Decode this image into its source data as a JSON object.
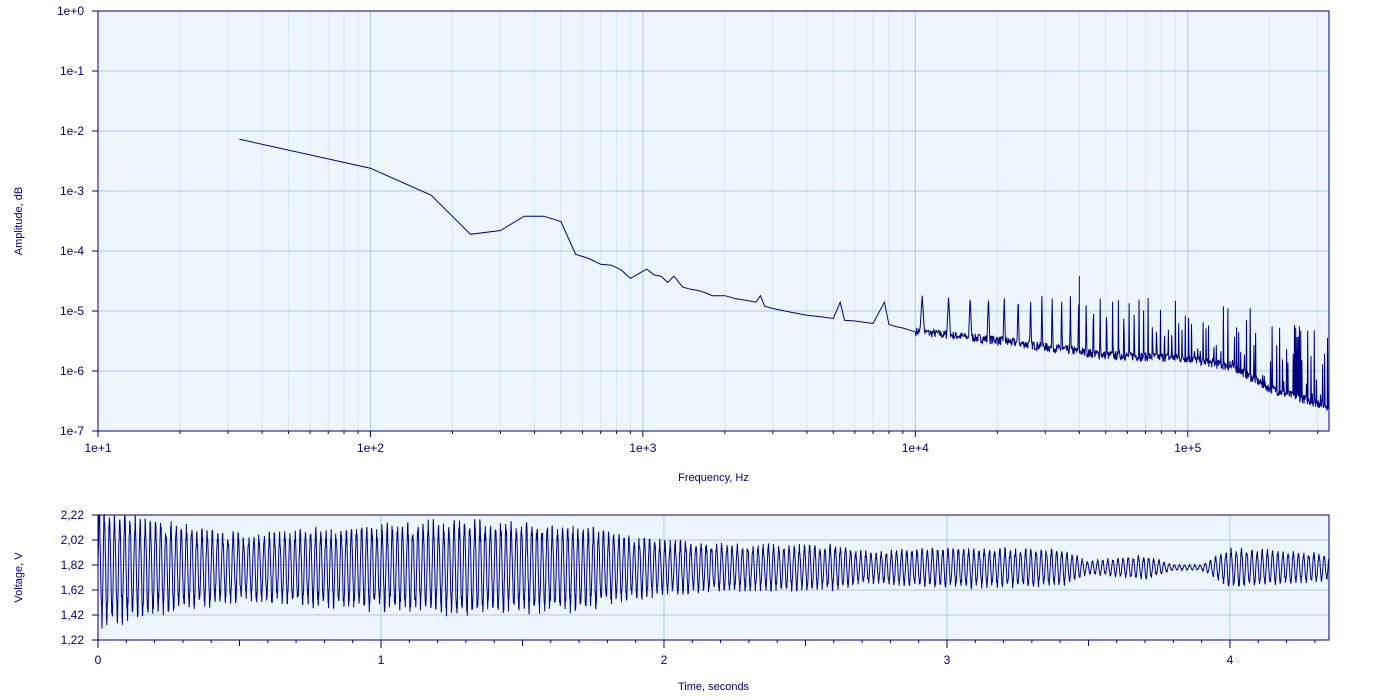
{
  "chart_data": [
    {
      "type": "line",
      "title": "",
      "xlabel": "Frequency, Hz",
      "ylabel": "Amplitude, dB",
      "x_scale": "log",
      "y_scale": "log",
      "xlim": [
        10,
        330000
      ],
      "ylim": [
        1e-07,
        1
      ],
      "grid": true,
      "x_ticks": [
        "1e+1",
        "1e+2",
        "1e+3",
        "1e+4",
        "1e+5"
      ],
      "y_ticks": [
        "1e+0",
        "1e-1",
        "1e-2",
        "1e-3",
        "1e-4",
        "1e-5",
        "1e-6",
        "1e-7"
      ],
      "colors": {
        "line": "#000080",
        "plot_bg": "#eef6fd",
        "grid": "#b4c8dc",
        "axis": "#000080"
      },
      "series": [
        {
          "x": [
            33,
            100,
            167,
            233,
            300,
            367,
            433,
            500,
            567,
            633,
            700,
            767,
            833,
            900,
            967,
            1033,
            1100,
            1167,
            1233,
            1300,
            1400,
            1500,
            1600,
            1700,
            1800,
            2000,
            2200,
            2400,
            2600,
            2700,
            2800,
            3000,
            3500,
            4000,
            4500,
            5000,
            5300,
            5500,
            6000,
            7000,
            7700,
            8000,
            8500,
            9000,
            10000
          ],
          "y": [
            0.0073,
            0.0024,
            0.00085,
            0.00019,
            0.00022,
            0.00038,
            0.00038,
            0.00031,
            8.8e-05,
            7.5e-05,
            6e-05,
            5.8e-05,
            4.8e-05,
            3.5e-05,
            4.2e-05,
            5e-05,
            4e-05,
            3.8e-05,
            3e-05,
            3.8e-05,
            2.5e-05,
            2.3e-05,
            2.2e-05,
            2e-05,
            1.8e-05,
            1.8e-05,
            1.6e-05,
            1.5e-05,
            1.4e-05,
            1.8e-05,
            1.2e-05,
            1.1e-05,
            9.5e-06,
            8.5e-06,
            8e-06,
            7.5e-06,
            1.4e-05,
            7e-06,
            6.8e-06,
            6.2e-06,
            1.4e-05,
            6e-06,
            5.5e-06,
            5.2e-06,
            4.5e-06
          ]
        }
      ],
      "comb": {
        "fundamental_hz": 2650,
        "from_hz": 10000,
        "to_hz": 330000,
        "floor": [
          [
            10000,
            4.5e-06
          ],
          [
            20000,
            3.2e-06
          ],
          [
            50000,
            1.8e-06
          ],
          [
            100000,
            1.6e-06
          ],
          [
            150000,
            1.1e-06
          ],
          [
            200000,
            5e-07
          ],
          [
            330000,
            2.5e-07
          ]
        ],
        "peak": [
          [
            10000,
            1.8e-05
          ],
          [
            40000,
            1.8e-05
          ],
          [
            100000,
            1.6e-05
          ],
          [
            200000,
            1.1e-05
          ],
          [
            300000,
            6e-06
          ],
          [
            330000,
            3.5e-06
          ]
        ],
        "max_peak": [
          40000,
          3.8e-05
        ]
      }
    },
    {
      "type": "line",
      "title": "",
      "xlabel": "Time, seconds",
      "ylabel": "Voltage, V",
      "xlim": [
        0,
        4.35
      ],
      "ylim": [
        1.22,
        2.22
      ],
      "grid": true,
      "x_ticks": [
        "0",
        "1",
        "2",
        "3",
        "4"
      ],
      "y_ticks": [
        "2,22",
        "2,02",
        "1,82",
        "1,62",
        "1,42",
        "1,22"
      ],
      "colors": {
        "line": "#000080",
        "plot_bg": "#eef6fd",
        "grid": "#b4c8dc",
        "axis": "#000080"
      },
      "series": [
        {
          "waveform": "oscillating",
          "center_v": 1.8,
          "oscillation_hz": 55,
          "envelope": [
            [
              0,
              0.45
            ],
            [
              0.2,
              0.35
            ],
            [
              0.5,
              0.25
            ],
            [
              1.0,
              0.32
            ],
            [
              1.3,
              0.35
            ],
            [
              1.7,
              0.32
            ],
            [
              2.0,
              0.2
            ],
            [
              2.3,
              0.17
            ],
            [
              2.6,
              0.17
            ],
            [
              2.7,
              0.12
            ],
            [
              3.0,
              0.15
            ],
            [
              3.4,
              0.14
            ],
            [
              3.5,
              0.05
            ],
            [
              3.7,
              0.09
            ],
            [
              3.8,
              0.02
            ],
            [
              3.9,
              0.02
            ],
            [
              4.0,
              0.15
            ],
            [
              4.35,
              0.1
            ]
          ]
        }
      ]
    }
  ]
}
